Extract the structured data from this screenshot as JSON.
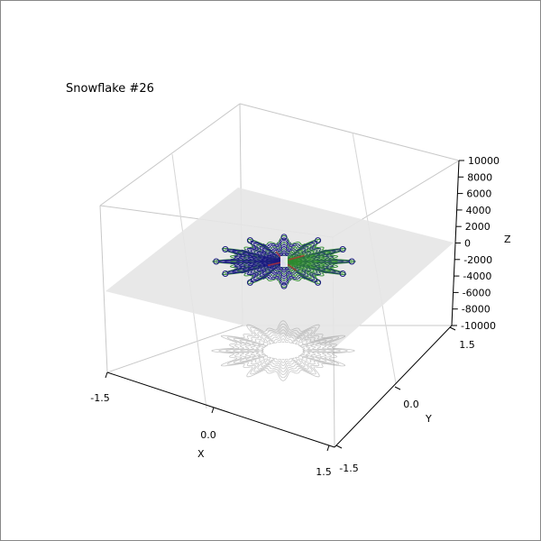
{
  "chart_data": {
    "type": "surface-3d",
    "title": "Snowflake #26",
    "xlabel": "X",
    "ylabel": "Y",
    "zlabel": "Z",
    "xlim": [
      -1.5,
      1.5
    ],
    "ylim": [
      -1.5,
      1.5
    ],
    "zlim": [
      -10000,
      10000
    ],
    "x_ticks": [
      "-1.5",
      "0.0",
      "1.5"
    ],
    "y_ticks": [
      "-1.5",
      "0.0",
      "1.5"
    ],
    "z_ticks": [
      "10000",
      "8000",
      "6000",
      "4000",
      "2000",
      "0",
      "-2000",
      "-4000",
      "-6000",
      "-8000",
      "-10000"
    ],
    "z_tick_values": [
      10000,
      8000,
      6000,
      4000,
      2000,
      0,
      -2000,
      -4000,
      -6000,
      -8000,
      -10000
    ],
    "grid": true,
    "snowflake": {
      "arms": 12,
      "colors": {
        "contour": "#1a1a80",
        "surface": "#2e8b2e",
        "accent": "#c03030"
      },
      "plane_color": "#e6e6e6",
      "shadow_color": "#9a9a9a"
    }
  }
}
